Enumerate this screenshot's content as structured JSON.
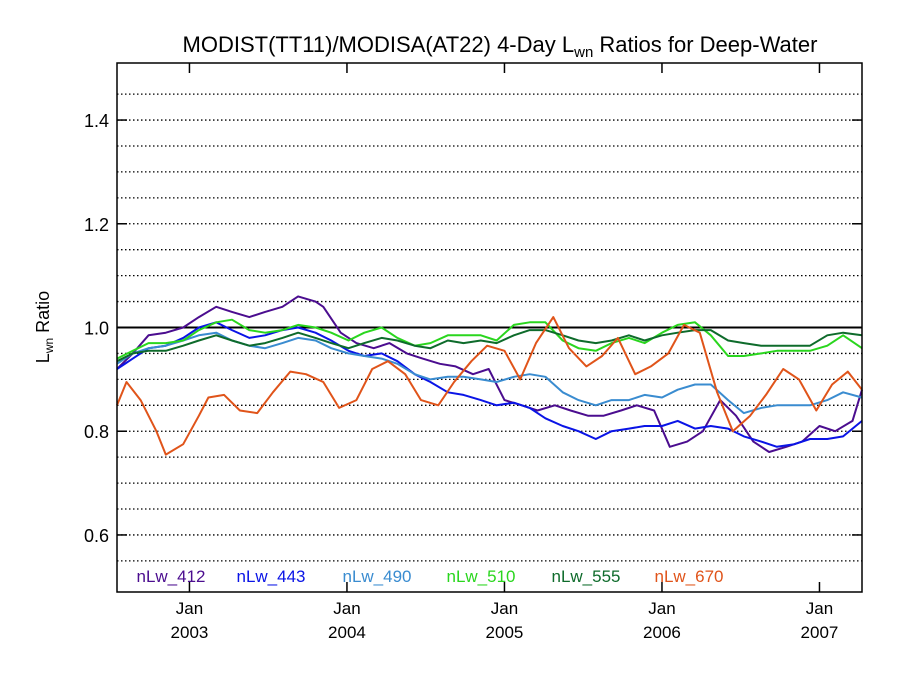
{
  "chart_data": {
    "type": "line",
    "title": {
      "prefix": "MODIST(TT11)/MODISA(AT22) 4-Day L",
      "subscript": "wn",
      "suffix": " Ratios for Deep-Water"
    },
    "ylabel": {
      "main": "L",
      "subscript": "wn",
      "suffix": " Ratio"
    },
    "xlabel": "",
    "xlim": [
      2002.54,
      2007.27
    ],
    "ylim": [
      0.49,
      1.51
    ],
    "x_ticks": [
      {
        "x": 2003.0,
        "month": "Jan",
        "year": "2003"
      },
      {
        "x": 2004.0,
        "month": "Jan",
        "year": "2004"
      },
      {
        "x": 2005.0,
        "month": "Jan",
        "year": "2005"
      },
      {
        "x": 2006.0,
        "month": "Jan",
        "year": "2006"
      },
      {
        "x": 2007.0,
        "month": "Jan",
        "year": "2007"
      }
    ],
    "y_tick_labels": [
      {
        "y": 0.6,
        "label": "0.6"
      },
      {
        "y": 0.8,
        "label": "0.8"
      },
      {
        "y": 1.0,
        "label": "1.0"
      },
      {
        "y": 1.2,
        "label": "1.2"
      },
      {
        "y": 1.4,
        "label": "1.4"
      }
    ],
    "grid_y": [
      0.55,
      0.6,
      0.65,
      0.7,
      0.75,
      0.8,
      0.85,
      0.9,
      0.95,
      1.05,
      1.1,
      1.15,
      1.2,
      1.25,
      1.3,
      1.35,
      1.4,
      1.45
    ],
    "grid_style": "dotted horizontal",
    "reference_line": 1.0,
    "legend_position": "bottom inside plot",
    "series": [
      {
        "name": "nLw_412",
        "color": "#4b0d8f",
        "x": [
          2002.54,
          2002.64,
          2002.74,
          2002.85,
          2002.96,
          2003.06,
          2003.17,
          2003.27,
          2003.38,
          2003.48,
          2003.59,
          2003.69,
          2003.8,
          2003.85,
          2003.96,
          2004.06,
          2004.17,
          2004.27,
          2004.38,
          2004.48,
          2004.59,
          2004.69,
          2004.8,
          2004.9,
          2005.0,
          2005.11,
          2005.21,
          2005.32,
          2005.42,
          2005.53,
          2005.63,
          2005.74,
          2005.84,
          2005.95,
          2006.05,
          2006.16,
          2006.26,
          2006.37,
          2006.47,
          2006.58,
          2006.68,
          2006.79,
          2006.89,
          2007.0,
          2007.1,
          2007.21,
          2007.27
        ],
        "y": [
          0.92,
          0.95,
          0.985,
          0.99,
          1.0,
          1.02,
          1.04,
          1.03,
          1.02,
          1.03,
          1.04,
          1.06,
          1.05,
          1.04,
          0.99,
          0.97,
          0.96,
          0.97,
          0.95,
          0.94,
          0.93,
          0.925,
          0.91,
          0.92,
          0.86,
          0.85,
          0.84,
          0.85,
          0.84,
          0.83,
          0.83,
          0.84,
          0.85,
          0.84,
          0.77,
          0.78,
          0.8,
          0.86,
          0.83,
          0.78,
          0.76,
          0.77,
          0.78,
          0.81,
          0.8,
          0.82,
          0.88
        ]
      },
      {
        "name": "nLw_443",
        "color": "#0a14e6",
        "x": [
          2002.54,
          2002.64,
          2002.74,
          2002.85,
          2002.96,
          2003.06,
          2003.17,
          2003.27,
          2003.38,
          2003.48,
          2003.59,
          2003.69,
          2003.8,
          2003.9,
          2004.01,
          2004.11,
          2004.22,
          2004.32,
          2004.43,
          2004.53,
          2004.64,
          2004.74,
          2004.85,
          2004.95,
          2005.06,
          2005.16,
          2005.26,
          2005.37,
          2005.47,
          2005.58,
          2005.68,
          2005.79,
          2005.89,
          2006.0,
          2006.1,
          2006.21,
          2006.31,
          2006.42,
          2006.52,
          2006.63,
          2006.73,
          2006.84,
          2006.94,
          2007.05,
          2007.15,
          2007.27
        ],
        "y": [
          0.92,
          0.94,
          0.96,
          0.965,
          0.98,
          1.0,
          1.01,
          0.995,
          0.98,
          0.985,
          0.995,
          1.0,
          0.99,
          0.975,
          0.955,
          0.945,
          0.95,
          0.935,
          0.91,
          0.895,
          0.875,
          0.87,
          0.86,
          0.85,
          0.855,
          0.845,
          0.825,
          0.81,
          0.8,
          0.785,
          0.8,
          0.805,
          0.81,
          0.81,
          0.82,
          0.805,
          0.81,
          0.805,
          0.79,
          0.78,
          0.77,
          0.775,
          0.785,
          0.785,
          0.79,
          0.82
        ]
      },
      {
        "name": "nLw_490",
        "color": "#3a8cd0",
        "x": [
          2002.54,
          2002.64,
          2002.74,
          2002.85,
          2002.96,
          2003.06,
          2003.17,
          2003.27,
          2003.38,
          2003.48,
          2003.59,
          2003.69,
          2003.8,
          2003.9,
          2004.01,
          2004.11,
          2004.22,
          2004.32,
          2004.43,
          2004.53,
          2004.64,
          2004.74,
          2004.85,
          2004.95,
          2005.06,
          2005.16,
          2005.26,
          2005.37,
          2005.47,
          2005.58,
          2005.68,
          2005.79,
          2005.89,
          2006.0,
          2006.1,
          2006.21,
          2006.31,
          2006.42,
          2006.52,
          2006.63,
          2006.73,
          2006.84,
          2006.94,
          2007.05,
          2007.15,
          2007.27
        ],
        "y": [
          0.93,
          0.95,
          0.96,
          0.965,
          0.975,
          0.985,
          0.99,
          0.975,
          0.965,
          0.96,
          0.97,
          0.98,
          0.975,
          0.96,
          0.95,
          0.945,
          0.94,
          0.93,
          0.91,
          0.9,
          0.905,
          0.905,
          0.9,
          0.895,
          0.905,
          0.91,
          0.905,
          0.875,
          0.86,
          0.85,
          0.86,
          0.86,
          0.87,
          0.865,
          0.88,
          0.89,
          0.89,
          0.86,
          0.835,
          0.845,
          0.85,
          0.85,
          0.85,
          0.86,
          0.875,
          0.865
        ]
      },
      {
        "name": "nLw_510",
        "color": "#2ad61e",
        "x": [
          2002.54,
          2002.64,
          2002.74,
          2002.85,
          2002.96,
          2003.06,
          2003.17,
          2003.27,
          2003.38,
          2003.48,
          2003.59,
          2003.69,
          2003.8,
          2003.9,
          2004.01,
          2004.11,
          2004.22,
          2004.32,
          2004.43,
          2004.53,
          2004.64,
          2004.74,
          2004.85,
          2004.95,
          2005.06,
          2005.16,
          2005.26,
          2005.37,
          2005.47,
          2005.58,
          2005.68,
          2005.79,
          2005.89,
          2006.0,
          2006.1,
          2006.21,
          2006.31,
          2006.42,
          2006.52,
          2006.63,
          2006.73,
          2006.84,
          2006.94,
          2007.05,
          2007.15,
          2007.27
        ],
        "y": [
          0.94,
          0.955,
          0.97,
          0.97,
          0.975,
          0.995,
          1.01,
          1.015,
          0.995,
          0.99,
          0.995,
          1.005,
          1.0,
          0.99,
          0.975,
          0.99,
          1.0,
          0.98,
          0.965,
          0.97,
          0.985,
          0.985,
          0.985,
          0.975,
          1.005,
          1.01,
          1.01,
          0.975,
          0.96,
          0.955,
          0.97,
          0.98,
          0.97,
          0.99,
          1.005,
          1.01,
          0.985,
          0.945,
          0.945,
          0.95,
          0.955,
          0.955,
          0.955,
          0.965,
          0.985,
          0.96
        ]
      },
      {
        "name": "nLw_555",
        "color": "#0e6b2b",
        "x": [
          2002.54,
          2002.64,
          2002.74,
          2002.85,
          2002.96,
          2003.06,
          2003.17,
          2003.27,
          2003.38,
          2003.48,
          2003.59,
          2003.69,
          2003.8,
          2003.9,
          2004.01,
          2004.11,
          2004.22,
          2004.32,
          2004.43,
          2004.53,
          2004.64,
          2004.74,
          2004.85,
          2004.95,
          2005.06,
          2005.16,
          2005.26,
          2005.37,
          2005.47,
          2005.58,
          2005.68,
          2005.79,
          2005.89,
          2006.0,
          2006.1,
          2006.21,
          2006.31,
          2006.42,
          2006.52,
          2006.63,
          2006.73,
          2006.84,
          2006.94,
          2007.05,
          2007.15,
          2007.27
        ],
        "y": [
          0.935,
          0.95,
          0.955,
          0.955,
          0.965,
          0.975,
          0.985,
          0.975,
          0.965,
          0.97,
          0.98,
          0.99,
          0.98,
          0.97,
          0.96,
          0.97,
          0.98,
          0.975,
          0.965,
          0.96,
          0.975,
          0.97,
          0.975,
          0.97,
          0.985,
          0.995,
          0.995,
          0.985,
          0.975,
          0.97,
          0.975,
          0.985,
          0.975,
          0.985,
          0.99,
          0.995,
          0.995,
          0.975,
          0.97,
          0.965,
          0.965,
          0.965,
          0.965,
          0.985,
          0.99,
          0.985
        ]
      },
      {
        "name": "nLw_670",
        "color": "#e0541a",
        "x": [
          2002.54,
          2002.6,
          2002.69,
          2002.79,
          2002.85,
          2002.96,
          2003.06,
          2003.12,
          2003.22,
          2003.32,
          2003.43,
          2003.53,
          2003.64,
          2003.74,
          2003.85,
          2003.95,
          2004.06,
          2004.16,
          2004.26,
          2004.37,
          2004.47,
          2004.58,
          2004.68,
          2004.79,
          2004.89,
          2005.0,
          2005.1,
          2005.2,
          2005.31,
          2005.41,
          2005.52,
          2005.62,
          2005.72,
          2005.83,
          2005.93,
          2006.04,
          2006.14,
          2006.24,
          2006.35,
          2006.45,
          2006.56,
          2006.66,
          2006.77,
          2006.87,
          2006.98,
          2007.08,
          2007.18,
          2007.27
        ],
        "y": [
          0.85,
          0.895,
          0.86,
          0.8,
          0.755,
          0.775,
          0.83,
          0.865,
          0.87,
          0.84,
          0.835,
          0.875,
          0.915,
          0.91,
          0.895,
          0.845,
          0.86,
          0.92,
          0.935,
          0.91,
          0.86,
          0.85,
          0.895,
          0.935,
          0.965,
          0.955,
          0.9,
          0.97,
          1.02,
          0.96,
          0.925,
          0.945,
          0.98,
          0.91,
          0.925,
          0.95,
          1.005,
          0.99,
          0.875,
          0.8,
          0.83,
          0.87,
          0.92,
          0.9,
          0.84,
          0.89,
          0.915,
          0.88
        ]
      }
    ]
  }
}
